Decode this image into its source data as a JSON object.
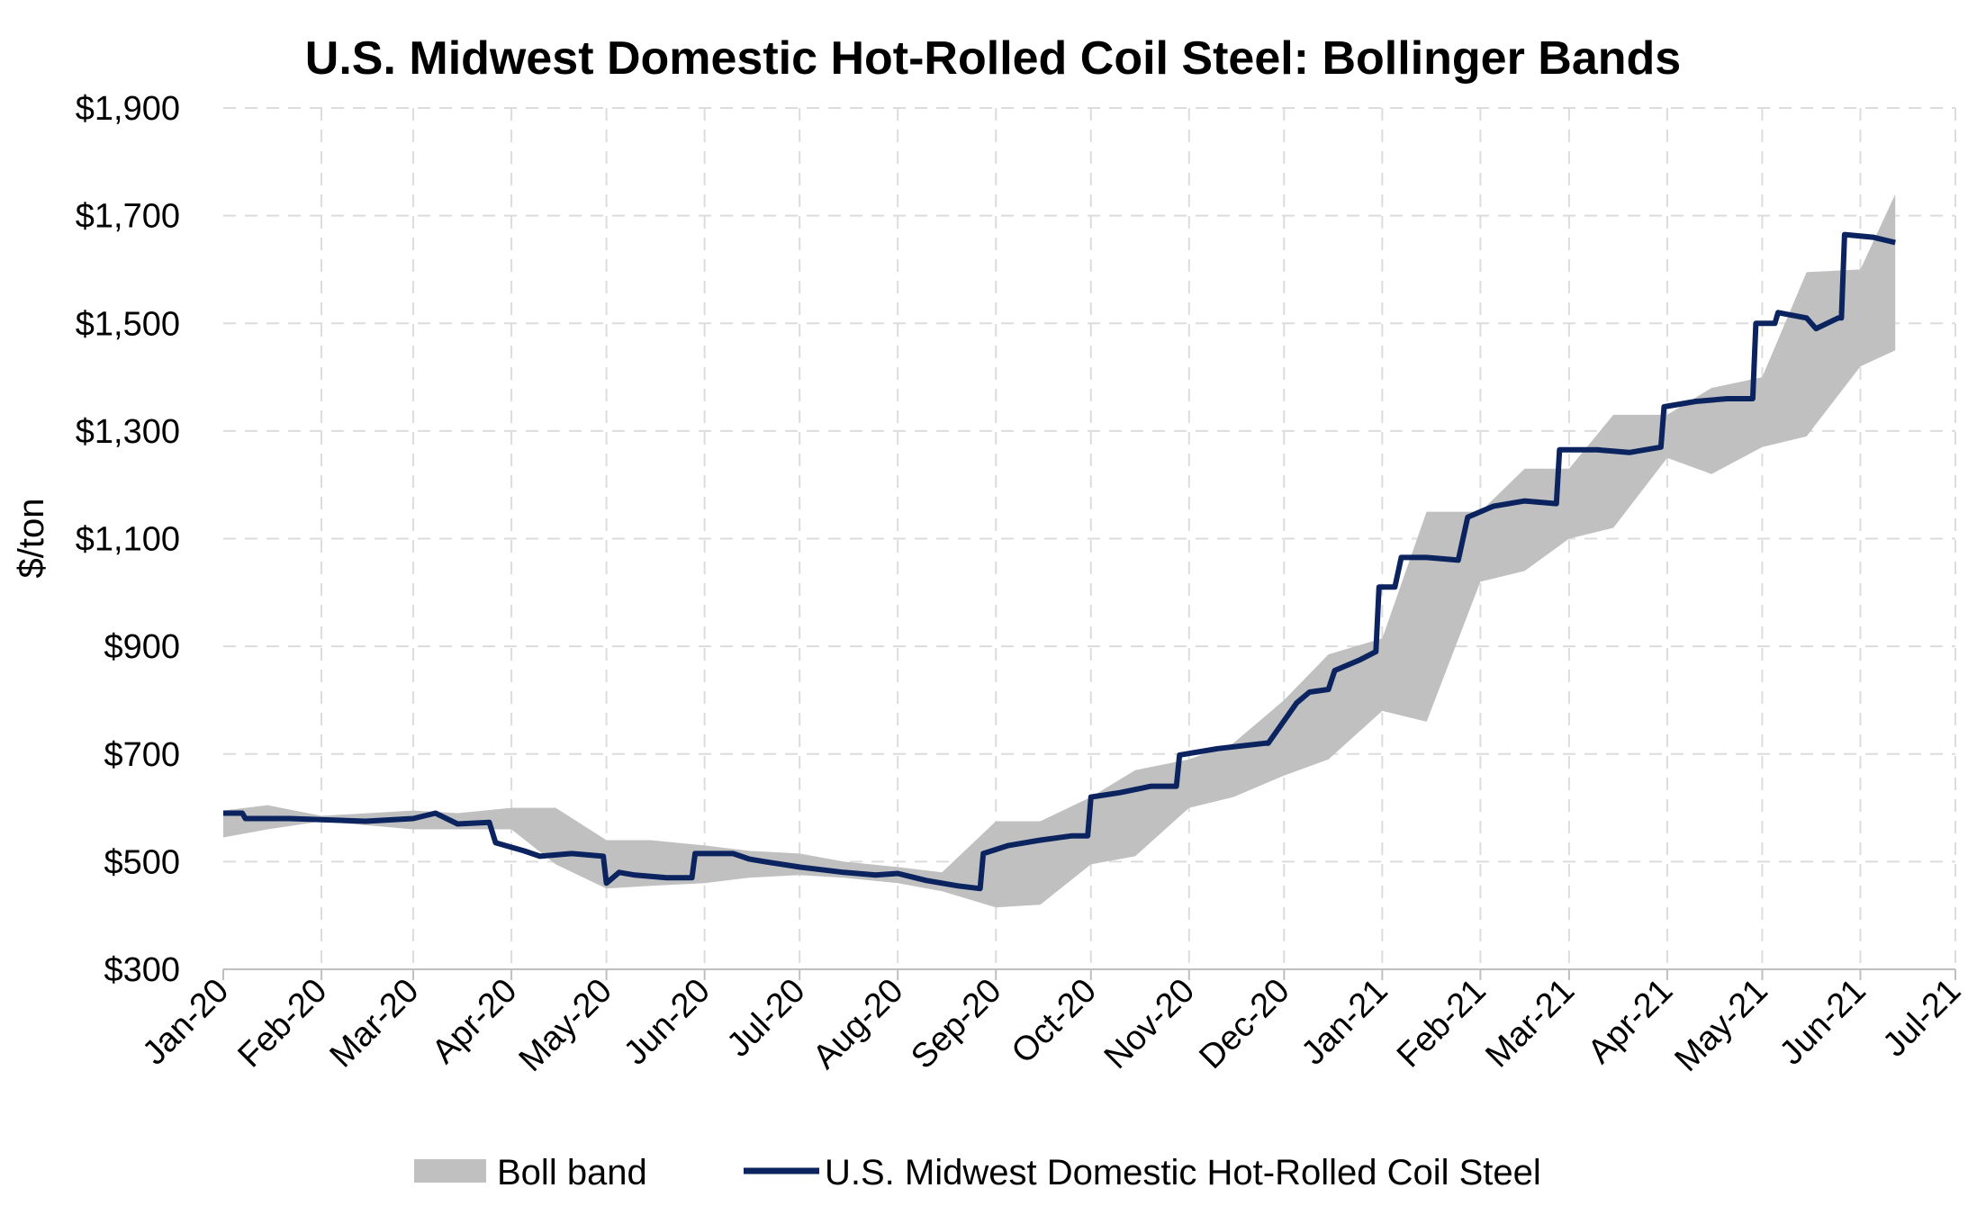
{
  "chart_data": {
    "type": "line",
    "title": "U.S. Midwest Domestic Hot-Rolled Coil Steel: Bollinger Bands",
    "xlabel": "",
    "ylabel": "$/ton",
    "ylim": [
      300,
      1900
    ],
    "y_ticks": [
      300,
      500,
      700,
      900,
      1100,
      1300,
      1500,
      1700,
      1900
    ],
    "y_tick_labels": [
      "$300",
      "$500",
      "$700",
      "$900",
      "$1,100",
      "$1,300",
      "$1,500",
      "$1,700",
      "$1,900"
    ],
    "x_range": [
      "2020-01-01",
      "2021-07-01"
    ],
    "x_ticks": [
      "2020-01-01",
      "2020-02-01",
      "2020-03-01",
      "2020-04-01",
      "2020-05-01",
      "2020-06-01",
      "2020-07-01",
      "2020-08-01",
      "2020-09-01",
      "2020-10-01",
      "2020-11-01",
      "2020-12-01",
      "2021-01-01",
      "2021-02-01",
      "2021-03-01",
      "2021-04-01",
      "2021-05-01",
      "2021-06-01",
      "2021-07-01"
    ],
    "x_tick_labels": [
      "Jan-20",
      "Feb-20",
      "Mar-20",
      "Apr-20",
      "May-20",
      "Jun-20",
      "Jul-20",
      "Aug-20",
      "Sep-20",
      "Oct-20",
      "Nov-20",
      "Dec-20",
      "Jan-21",
      "Feb-21",
      "Mar-21",
      "Apr-21",
      "May-21",
      "Jun-21",
      "Jul-21"
    ],
    "grid": true,
    "legend_position": "bottom",
    "colors": {
      "line": "#0b2460",
      "band": "#c0c0c0",
      "grid": "#dcdcdc",
      "axis": "#bfbfbf"
    },
    "series": [
      {
        "name": "Boll band",
        "kind": "band",
        "x": [
          "2020-01-01",
          "2020-01-15",
          "2020-02-01",
          "2020-03-01",
          "2020-03-15",
          "2020-04-01",
          "2020-04-15",
          "2020-05-01",
          "2020-05-15",
          "2020-06-01",
          "2020-06-15",
          "2020-07-01",
          "2020-07-15",
          "2020-08-01",
          "2020-08-15",
          "2020-09-01",
          "2020-09-15",
          "2020-10-01",
          "2020-10-15",
          "2020-11-01",
          "2020-11-15",
          "2020-12-01",
          "2020-12-15",
          "2021-01-01",
          "2021-01-15",
          "2021-02-01",
          "2021-02-15",
          "2021-03-01",
          "2021-03-15",
          "2021-04-01",
          "2021-04-15",
          "2021-05-01",
          "2021-05-15",
          "2021-06-01",
          "2021-06-12"
        ],
        "upper": [
          595,
          605,
          585,
          595,
          590,
          600,
          600,
          540,
          540,
          530,
          520,
          515,
          500,
          490,
          480,
          575,
          575,
          620,
          670,
          690,
          720,
          800,
          885,
          915,
          1150,
          1150,
          1230,
          1230,
          1330,
          1330,
          1380,
          1400,
          1595,
          1600,
          1740
        ],
        "lower": [
          545,
          560,
          575,
          560,
          560,
          560,
          495,
          450,
          455,
          460,
          470,
          475,
          470,
          460,
          445,
          415,
          420,
          495,
          510,
          600,
          620,
          660,
          690,
          780,
          760,
          1020,
          1040,
          1100,
          1120,
          1250,
          1220,
          1270,
          1290,
          1420,
          1450
        ]
      },
      {
        "name": "U.S. Midwest Domestic Hot-Rolled Coil Steel",
        "kind": "line",
        "x": [
          "2020-01-01",
          "2020-01-07",
          "2020-01-08",
          "2020-01-15",
          "2020-01-22",
          "2020-02-01",
          "2020-02-15",
          "2020-03-01",
          "2020-03-08",
          "2020-03-15",
          "2020-03-25",
          "2020-03-27",
          "2020-04-05",
          "2020-04-10",
          "2020-04-20",
          "2020-04-30",
          "2020-05-01",
          "2020-05-05",
          "2020-05-10",
          "2020-05-20",
          "2020-05-28",
          "2020-05-29",
          "2020-06-10",
          "2020-06-15",
          "2020-06-20",
          "2020-07-01",
          "2020-07-15",
          "2020-07-25",
          "2020-08-01",
          "2020-08-10",
          "2020-08-20",
          "2020-08-27",
          "2020-08-28",
          "2020-09-05",
          "2020-09-15",
          "2020-09-25",
          "2020-09-30",
          "2020-10-01",
          "2020-10-10",
          "2020-10-20",
          "2020-10-28",
          "2020-10-29",
          "2020-11-10",
          "2020-11-25",
          "2020-11-26",
          "2020-12-05",
          "2020-12-09",
          "2020-12-15",
          "2020-12-17",
          "2020-12-25",
          "2020-12-30",
          "2020-12-31",
          "2021-01-05",
          "2021-01-07",
          "2021-01-15",
          "2021-01-25",
          "2021-01-28",
          "2021-02-05",
          "2021-02-15",
          "2021-02-25",
          "2021-02-26",
          "2021-03-10",
          "2021-03-20",
          "2021-03-30",
          "2021-03-31",
          "2021-04-10",
          "2021-04-20",
          "2021-04-28",
          "2021-04-29",
          "2021-05-05",
          "2021-05-06",
          "2021-05-15",
          "2021-05-18",
          "2021-05-25",
          "2021-05-26",
          "2021-05-27",
          "2021-06-05",
          "2021-06-12"
        ],
        "y": [
          590,
          590,
          580,
          580,
          580,
          578,
          575,
          580,
          590,
          570,
          573,
          535,
          520,
          510,
          515,
          510,
          460,
          480,
          475,
          470,
          470,
          515,
          515,
          505,
          500,
          490,
          480,
          475,
          478,
          465,
          455,
          450,
          515,
          530,
          540,
          548,
          548,
          620,
          628,
          640,
          640,
          698,
          710,
          720,
          720,
          795,
          815,
          820,
          855,
          875,
          890,
          1010,
          1010,
          1065,
          1065,
          1060,
          1140,
          1160,
          1170,
          1165,
          1265,
          1265,
          1260,
          1270,
          1345,
          1355,
          1360,
          1360,
          1500,
          1500,
          1520,
          1510,
          1490,
          1510,
          1510,
          1665,
          1660,
          1650
        ]
      }
    ]
  }
}
